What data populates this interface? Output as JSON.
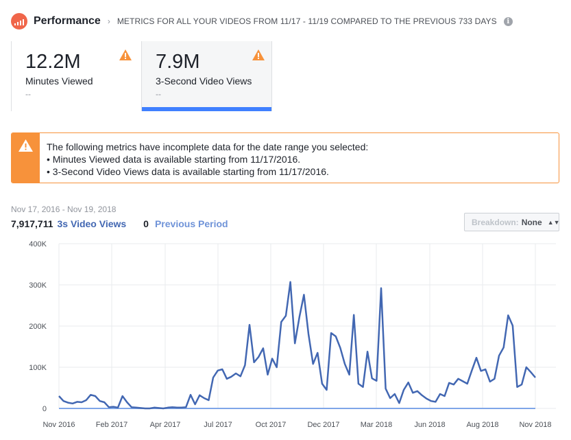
{
  "header": {
    "title": "Performance",
    "subtitle": "METRICS FOR ALL YOUR VIDEOS FROM 11/17 - 11/19 COMPARED TO THE PREVIOUS 733 DAYS",
    "icon": "performance-chart-icon",
    "info_icon": "i"
  },
  "metric_tabs": [
    {
      "value": "12.2M",
      "label": "Minutes Viewed",
      "delta": "--",
      "selected": false
    },
    {
      "value": "7.9M",
      "label": "3-Second Video Views",
      "delta": "--",
      "selected": true
    }
  ],
  "alert": {
    "line1": "The following metrics have incomplete data for the date range you selected:",
    "line2": "• Minutes Viewed data is available starting from 11/17/2016.",
    "line3": "• 3-Second Video Views data is available starting from 11/17/2016.",
    "color": "#f7923b"
  },
  "summary": {
    "date_range": "Nov 17, 2016 - Nov 19, 2018",
    "total": "7,917,711",
    "series_label": "3s Video Views",
    "previous_total": "0",
    "previous_label": "Previous Period"
  },
  "breakdown": {
    "label": "Breakdown:",
    "value": "None"
  },
  "colors": {
    "series": "#4267b2",
    "previous": "#6f93d8",
    "warning": "#f7923b",
    "accent": "#4080ff"
  },
  "chart_data": {
    "type": "line",
    "ylim": [
      0,
      400000
    ],
    "yticks": [
      "0",
      "100K",
      "200K",
      "300K",
      "400K"
    ],
    "ytick_values": [
      0,
      100000,
      200000,
      300000,
      400000
    ],
    "xticks": [
      "Nov 2016",
      "Feb 2017",
      "Apr 2017",
      "Jul 2017",
      "Oct 2017",
      "Dec 2017",
      "Mar 2018",
      "Jun 2018",
      "Aug 2018",
      "Nov 2018"
    ],
    "x_start": "2016-11-17",
    "x_end": "2018-11-19",
    "grid": true,
    "series": [
      {
        "name": "3s Video Views",
        "values": [
          30000,
          18000,
          14000,
          12000,
          16000,
          15000,
          20000,
          33000,
          30000,
          18000,
          15000,
          3000,
          4000,
          2000,
          30000,
          15000,
          3000,
          2000,
          1000,
          0,
          0,
          2000,
          1000,
          0,
          2000,
          3000,
          2000,
          2000,
          3000,
          33000,
          10000,
          32000,
          25000,
          20000,
          75000,
          92000,
          95000,
          72000,
          77000,
          85000,
          78000,
          105000,
          203000,
          112000,
          125000,
          146000,
          82000,
          121000,
          100000,
          210000,
          225000,
          307000,
          158000,
          222000,
          276000,
          181000,
          108000,
          135000,
          60000,
          45000,
          183000,
          175000,
          147000,
          108000,
          82000,
          227000,
          60000,
          52000,
          138000,
          73000,
          67000,
          292000,
          48000,
          25000,
          35000,
          13000,
          45000,
          63000,
          38000,
          42000,
          32000,
          24000,
          18000,
          16000,
          35000,
          30000,
          62000,
          58000,
          72000,
          66000,
          60000,
          92000,
          123000,
          91000,
          95000,
          65000,
          72000,
          128000,
          148000,
          226000,
          201000,
          52000,
          58000,
          100000,
          88000,
          75000
        ]
      },
      {
        "name": "Previous Period",
        "values": [
          0,
          0
        ]
      }
    ]
  }
}
